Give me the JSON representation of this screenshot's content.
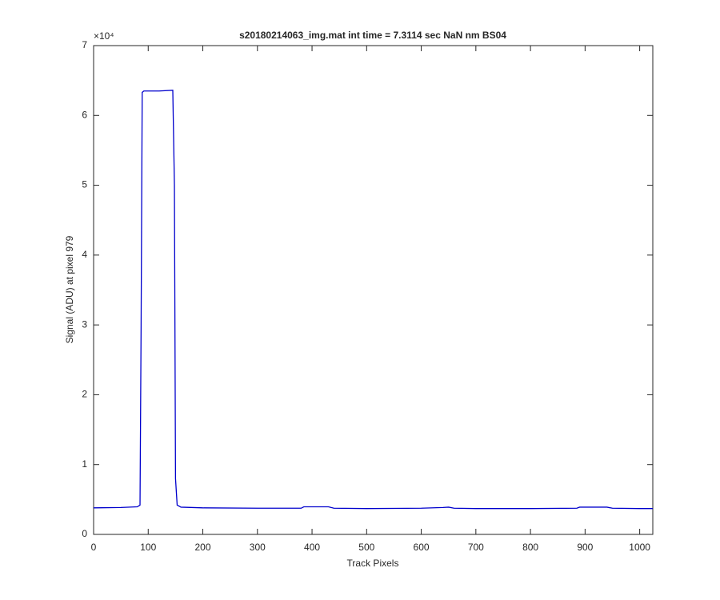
{
  "chart_data": {
    "type": "line",
    "title": "s20180214063_img.mat int time = 7.3114 sec  NaN nm BS04",
    "x_label": "Track Pixels",
    "y_label": "Signal (ADU) at pixel 979",
    "y_exponent_label": "×10⁴",
    "x": [
      0,
      50,
      80,
      85,
      87,
      89,
      92,
      120,
      145,
      148,
      150,
      153,
      160,
      200,
      300,
      380,
      385,
      430,
      440,
      500,
      600,
      640,
      650,
      660,
      700,
      800,
      885,
      890,
      940,
      950,
      1000,
      1024
    ],
    "series": [
      {
        "name": "signal",
        "color": "#0000cc",
        "values": [
          3800,
          3850,
          3950,
          4200,
          30000,
          63300,
          63500,
          63500,
          63600,
          50000,
          8000,
          4200,
          3900,
          3800,
          3750,
          3750,
          3950,
          3950,
          3750,
          3700,
          3750,
          3850,
          3900,
          3750,
          3700,
          3700,
          3750,
          3900,
          3900,
          3750,
          3700,
          3700
        ]
      }
    ],
    "xlim": [
      0,
      1024
    ],
    "ylim": [
      0,
      70000
    ],
    "xticks": [
      0,
      100,
      200,
      300,
      400,
      500,
      600,
      700,
      800,
      900,
      1000
    ],
    "yticks": [
      {
        "value": 0,
        "label": "0"
      },
      {
        "value": 10000,
        "label": "1"
      },
      {
        "value": 20000,
        "label": "2"
      },
      {
        "value": 30000,
        "label": "3"
      },
      {
        "value": 40000,
        "label": "4"
      },
      {
        "value": 50000,
        "label": "5"
      },
      {
        "value": 60000,
        "label": "6"
      },
      {
        "value": 70000,
        "label": "7"
      }
    ],
    "grid": false
  }
}
